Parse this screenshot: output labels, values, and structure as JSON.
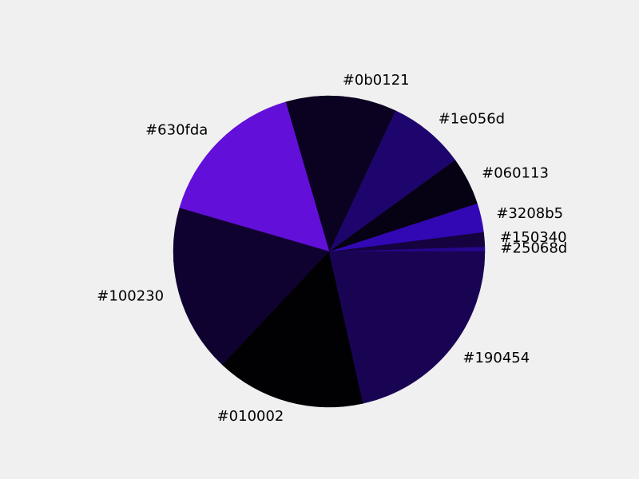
{
  "chart_data": {
    "type": "pie",
    "title": "",
    "start_angle_deg": 0,
    "direction": "counterclockwise",
    "slices": [
      {
        "label": "#25068d",
        "value": 0.5,
        "color": "#25068d"
      },
      {
        "label": "#150340",
        "value": 1.5,
        "color": "#150340"
      },
      {
        "label": "#3208b5",
        "value": 3.0,
        "color": "#3208b5"
      },
      {
        "label": "#060113",
        "value": 5.0,
        "color": "#060113"
      },
      {
        "label": "#1e056d",
        "value": 8.0,
        "color": "#1e056d"
      },
      {
        "label": "#0b0121",
        "value": 11.5,
        "color": "#0b0121"
      },
      {
        "label": "#630fda",
        "value": 16.0,
        "color": "#630fda"
      },
      {
        "label": "#100230",
        "value": 17.5,
        "color": "#100230"
      },
      {
        "label": "#010002",
        "value": 15.5,
        "color": "#010002"
      },
      {
        "label": "#190454",
        "value": 21.5,
        "color": "#190454"
      }
    ]
  }
}
